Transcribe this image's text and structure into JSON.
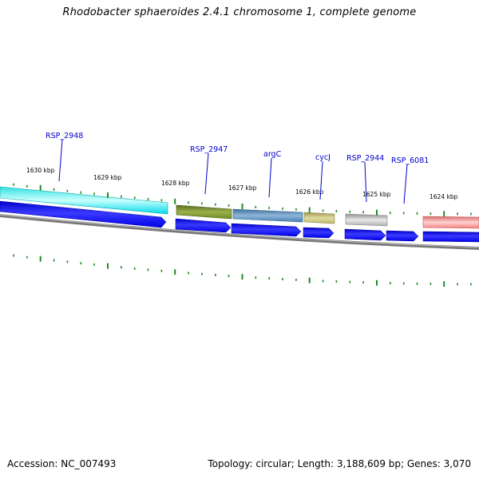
{
  "header": {
    "title": "Rhodobacter sphaeroides 2.4.1 chromosome 1, complete genome"
  },
  "footer": {
    "accession": "Accession: NC_007493",
    "summary": "Topology: circular; Length: 3,188,609 bp; Genes: 3,070"
  },
  "colors": {
    "forward_arrows": "#0000ee",
    "backbone": "#808080",
    "ticks": "#228B22",
    "gene_label": "#0000cc"
  },
  "kbp_labels": [
    {
      "label": "1630 kbp",
      "kbp": 1630
    },
    {
      "label": "1629 kbp",
      "kbp": 1629
    },
    {
      "label": "1628 kbp",
      "kbp": 1628
    },
    {
      "label": "1627 kbp",
      "kbp": 1627
    },
    {
      "label": "1626 kbp",
      "kbp": 1626
    },
    {
      "label": "1625 kbp",
      "kbp": 1625
    },
    {
      "label": "1624 kbp",
      "kbp": 1624
    }
  ],
  "genes": [
    {
      "name": "RSP_2948",
      "color": "#00e5e5"
    },
    {
      "name": "RSP_2947",
      "color": "#6b8e23"
    },
    {
      "name": "argC",
      "color": "#4682b4"
    },
    {
      "name": "cycJ",
      "color": "#bdb76b"
    },
    {
      "name": "RSP_2944",
      "color": "#b0b0b0"
    },
    {
      "name": "RSP_6081",
      "color": ""
    },
    {
      "name": "",
      "color": "#f08080"
    }
  ]
}
